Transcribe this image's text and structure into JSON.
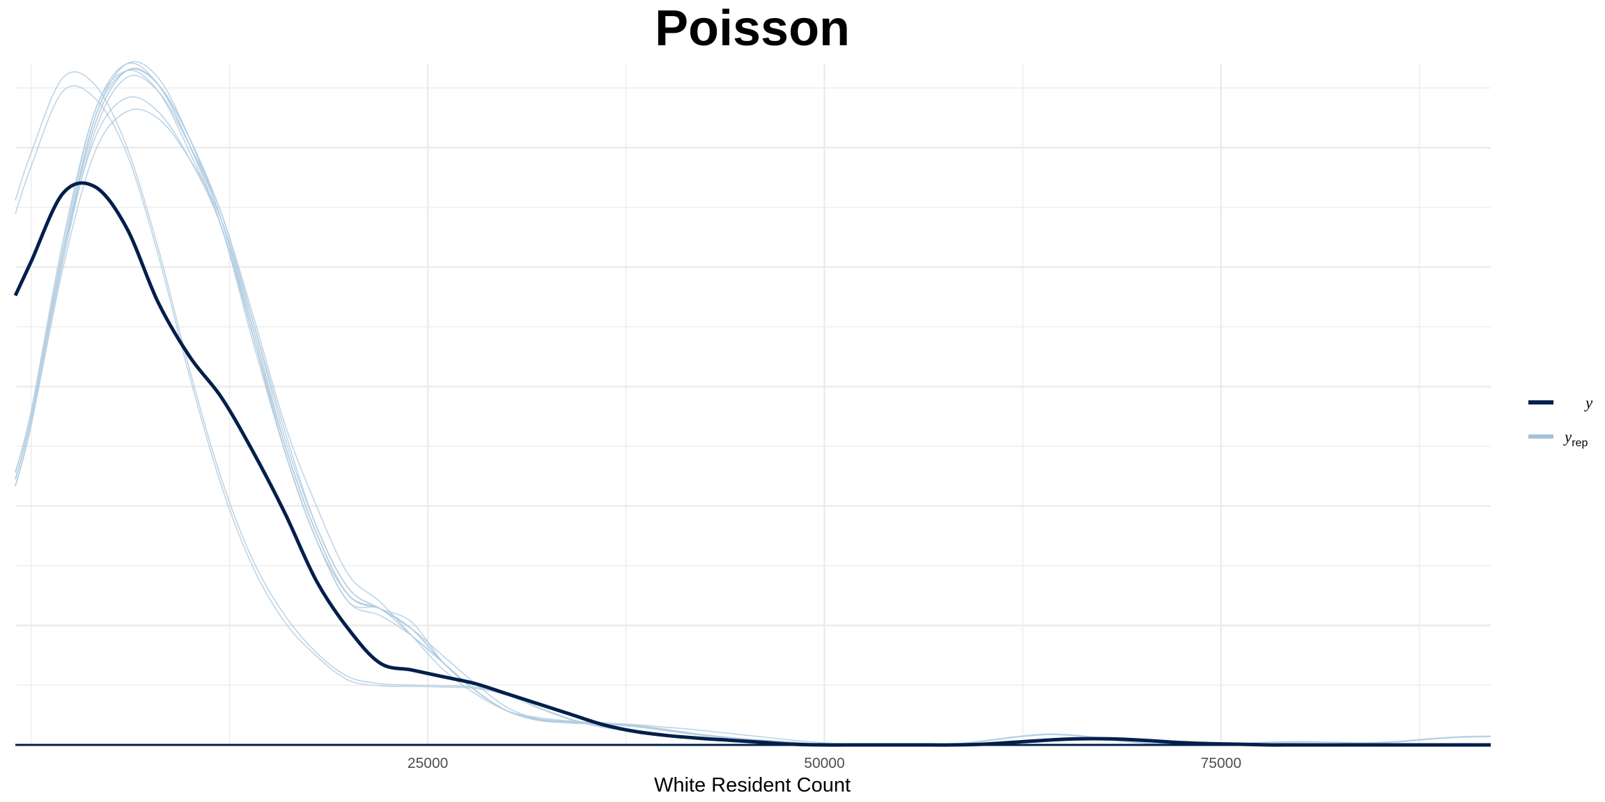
{
  "chart_data": {
    "type": "line",
    "title": "Poisson",
    "xlabel": "White Resident Count",
    "ylabel": "",
    "xlim": [
      -1000,
      92000
    ],
    "ylim": [
      0,
      1
    ],
    "x_ticks": [
      25000,
      50000,
      75000
    ],
    "x_tick_labels": [
      "25000",
      "50000",
      "75000"
    ],
    "grid": true,
    "legend_position": "right",
    "colors": {
      "y": "#011f4b",
      "yrep": "#b3cde0",
      "yrep_bold": "#a3c1da",
      "grid": "#ebebeb"
    },
    "legend": [
      {
        "key": "y",
        "label": "y",
        "sub": ""
      },
      {
        "key": "yrep",
        "label": "y",
        "sub": "rep"
      }
    ],
    "series": [
      {
        "name": "y",
        "role": "observed",
        "x": [
          -1000,
          0,
          2000,
          4000,
          6000,
          8000,
          10000,
          12000,
          14000,
          16000,
          18000,
          20000,
          22000,
          24000,
          26000,
          28000,
          30000,
          32000,
          34000,
          36000,
          38000,
          40000,
          42000,
          44000,
          46000,
          48000,
          50000,
          52000,
          54000,
          56000,
          58000,
          60000,
          62000,
          64000,
          66000,
          68000,
          70000,
          72000,
          74000,
          76000,
          78000,
          80000,
          85000,
          92000
        ],
        "y": [
          0.66,
          0.71,
          0.81,
          0.82,
          0.76,
          0.65,
          0.57,
          0.51,
          0.43,
          0.34,
          0.24,
          0.17,
          0.12,
          0.11,
          0.1,
          0.09,
          0.075,
          0.06,
          0.045,
          0.03,
          0.02,
          0.014,
          0.01,
          0.007,
          0.004,
          0.001,
          0,
          0,
          0,
          0,
          0,
          0.001,
          0.004,
          0.007,
          0.009,
          0.009,
          0.007,
          0.004,
          0.002,
          0.001,
          0,
          0,
          0,
          0
        ]
      },
      {
        "name": "y_rep 1",
        "role": "replicate",
        "x": [
          -1000,
          0,
          2000,
          4000,
          6000,
          8000,
          10000,
          12000,
          14000,
          16000,
          18000,
          20000,
          22000,
          24000,
          26000,
          28000,
          30000,
          32000,
          34000,
          36000,
          38000,
          40000,
          42000,
          44000,
          46000,
          48000,
          50000,
          52000,
          54000,
          56000,
          60000,
          70000,
          80000,
          92000
        ],
        "y": [
          0.39,
          0.48,
          0.72,
          0.91,
          0.99,
          0.97,
          0.88,
          0.77,
          0.6,
          0.43,
          0.3,
          0.22,
          0.2,
          0.17,
          0.12,
          0.08,
          0.05,
          0.037,
          0.033,
          0.032,
          0.028,
          0.022,
          0.015,
          0.01,
          0.006,
          0.003,
          0.001,
          0,
          0,
          0,
          0,
          0,
          0,
          0
        ]
      },
      {
        "name": "y_rep 2",
        "role": "replicate",
        "x": [
          -1000,
          0,
          2000,
          4000,
          6000,
          8000,
          10000,
          12000,
          14000,
          16000,
          18000,
          20000,
          22000,
          24000,
          26000,
          28000,
          30000,
          32000,
          34000,
          36000,
          38000,
          40000,
          42000,
          44000,
          46000,
          48000,
          50000,
          52000,
          54000,
          56000,
          60000,
          70000,
          80000,
          92000
        ],
        "y": [
          0.39,
          0.48,
          0.72,
          0.92,
          1.0,
          0.98,
          0.89,
          0.77,
          0.61,
          0.44,
          0.31,
          0.22,
          0.2,
          0.17,
          0.12,
          0.08,
          0.05,
          0.038,
          0.034,
          0.031,
          0.027,
          0.022,
          0.016,
          0.011,
          0.007,
          0.004,
          0.001,
          0,
          0,
          0,
          0,
          0,
          0,
          0
        ]
      },
      {
        "name": "y_rep 3",
        "role": "replicate",
        "x": [
          -1000,
          0,
          2000,
          4000,
          6000,
          8000,
          10000,
          12000,
          14000,
          16000,
          18000,
          20000,
          22000,
          24000,
          26000,
          28000,
          30000,
          32000,
          34000,
          36000,
          38000,
          40000,
          42000,
          44000,
          46000,
          48000,
          50000,
          52000,
          54000,
          56000,
          60000,
          70000,
          80000,
          92000
        ],
        "y": [
          0.4,
          0.49,
          0.73,
          0.93,
          0.99,
          0.96,
          0.87,
          0.76,
          0.59,
          0.43,
          0.3,
          0.21,
          0.2,
          0.16,
          0.12,
          0.08,
          0.05,
          0.036,
          0.033,
          0.032,
          0.029,
          0.023,
          0.016,
          0.01,
          0.006,
          0.003,
          0.001,
          0,
          0,
          0,
          0,
          0,
          0,
          0
        ]
      },
      {
        "name": "y_rep 4",
        "role": "replicate",
        "x": [
          -1000,
          0,
          2000,
          4000,
          6000,
          8000,
          10000,
          12000,
          14000,
          16000,
          18000,
          20000,
          22000,
          24000,
          26000,
          28000,
          30000,
          32000,
          34000,
          36000,
          38000,
          40000,
          42000,
          44000,
          46000,
          48000,
          50000,
          52000,
          54000,
          56000,
          60000,
          70000,
          80000,
          92000
        ],
        "y": [
          0.38,
          0.47,
          0.71,
          0.9,
          0.98,
          0.96,
          0.88,
          0.78,
          0.62,
          0.45,
          0.32,
          0.23,
          0.2,
          0.17,
          0.13,
          0.09,
          0.055,
          0.038,
          0.032,
          0.031,
          0.028,
          0.021,
          0.015,
          0.01,
          0.006,
          0.003,
          0.001,
          0,
          0,
          0,
          0,
          0,
          0,
          0
        ]
      },
      {
        "name": "y_rep 5",
        "role": "replicate",
        "x": [
          -1000,
          0,
          2000,
          4000,
          6000,
          8000,
          10000,
          12000,
          14000,
          16000,
          18000,
          20000,
          22000,
          24000,
          26000,
          28000,
          30000,
          32000,
          34000,
          36000,
          38000,
          40000,
          42000,
          44000,
          46000,
          48000,
          50000,
          52000,
          54000,
          56000,
          60000,
          70000,
          80000,
          92000
        ],
        "y": [
          0.39,
          0.48,
          0.72,
          0.91,
          0.99,
          0.97,
          0.89,
          0.77,
          0.61,
          0.44,
          0.31,
          0.22,
          0.2,
          0.18,
          0.12,
          0.08,
          0.05,
          0.037,
          0.034,
          0.033,
          0.027,
          0.021,
          0.015,
          0.01,
          0.007,
          0.004,
          0.001,
          0,
          0,
          0,
          0,
          0,
          0,
          0
        ]
      },
      {
        "name": "y_rep 6",
        "role": "replicate",
        "x": [
          -1000,
          0,
          2000,
          4000,
          6000,
          8000,
          10000,
          12000,
          14000,
          16000,
          18000,
          20000,
          22000,
          24000,
          26000,
          28000,
          30000,
          32000,
          34000,
          36000,
          38000,
          40000,
          42000,
          44000,
          46000,
          48000,
          50000,
          52000,
          54000,
          56000,
          60000,
          70000,
          80000,
          92000
        ],
        "y": [
          0.4,
          0.49,
          0.74,
          0.93,
          1.0,
          0.97,
          0.88,
          0.76,
          0.6,
          0.43,
          0.3,
          0.21,
          0.19,
          0.16,
          0.12,
          0.08,
          0.05,
          0.036,
          0.033,
          0.032,
          0.028,
          0.022,
          0.016,
          0.011,
          0.007,
          0.004,
          0.001,
          0,
          0,
          0,
          0,
          0,
          0,
          0
        ]
      },
      {
        "name": "y_rep 7",
        "role": "replicate",
        "x": [
          -1000,
          0,
          2000,
          4000,
          6000,
          8000,
          10000,
          12000,
          14000,
          16000,
          18000,
          20000,
          22000,
          24000,
          26000,
          28000,
          30000,
          32000,
          34000,
          36000,
          38000,
          40000,
          42000,
          44000,
          46000,
          48000,
          50000,
          52000,
          54000,
          56000,
          60000,
          70000,
          80000,
          92000
        ],
        "y": [
          0.39,
          0.48,
          0.72,
          0.89,
          0.95,
          0.93,
          0.86,
          0.76,
          0.6,
          0.44,
          0.31,
          0.22,
          0.2,
          0.17,
          0.12,
          0.08,
          0.05,
          0.037,
          0.034,
          0.032,
          0.028,
          0.022,
          0.016,
          0.01,
          0.006,
          0.003,
          0.001,
          0,
          0,
          0,
          0,
          0,
          0,
          0
        ]
      },
      {
        "name": "y_rep 8",
        "role": "replicate",
        "x": [
          -1000,
          0,
          2000,
          4000,
          6000,
          8000,
          10000,
          12000,
          14000,
          16000,
          18000,
          20000,
          22000,
          24000,
          26000,
          28000,
          30000,
          32000,
          34000,
          36000,
          38000,
          40000,
          42000,
          44000,
          46000,
          48000,
          50000,
          52000,
          54000,
          56000,
          60000,
          70000,
          80000,
          92000
        ],
        "y": [
          0.38,
          0.47,
          0.7,
          0.87,
          0.93,
          0.92,
          0.86,
          0.77,
          0.62,
          0.46,
          0.32,
          0.23,
          0.2,
          0.17,
          0.12,
          0.08,
          0.05,
          0.036,
          0.033,
          0.031,
          0.028,
          0.022,
          0.016,
          0.01,
          0.006,
          0.003,
          0.001,
          0,
          0,
          0,
          0,
          0,
          0,
          0
        ]
      },
      {
        "name": "y_rep 9",
        "role": "replicate",
        "x": [
          -1000,
          0,
          2000,
          4000,
          6000,
          8000,
          10000,
          12000,
          14000,
          16000,
          18000,
          20000,
          22000,
          24000,
          26000,
          28000,
          30000,
          32000,
          34000,
          36000,
          38000,
          40000,
          42000,
          44000,
          46000,
          48000,
          50000,
          52000,
          54000,
          56000,
          60000,
          70000,
          80000,
          92000
        ],
        "y": [
          0.39,
          0.48,
          0.72,
          0.92,
          0.99,
          0.97,
          0.89,
          0.78,
          0.63,
          0.47,
          0.35,
          0.25,
          0.21,
          0.16,
          0.11,
          0.075,
          0.05,
          0.04,
          0.035,
          0.032,
          0.03,
          0.026,
          0.022,
          0.017,
          0.012,
          0.007,
          0.003,
          0.001,
          0,
          0,
          0,
          0,
          0,
          0
        ]
      },
      {
        "name": "y_rep 10",
        "role": "replicate",
        "x": [
          -1000,
          0,
          2000,
          4000,
          6000,
          8000,
          10000,
          12000,
          14000,
          16000,
          18000,
          20000,
          22000,
          24000,
          26000,
          28000,
          30000,
          32000,
          34000,
          36000,
          38000,
          40000,
          42000,
          44000,
          46000,
          48000,
          50000,
          52000,
          54000,
          56000,
          58000,
          60000,
          62000,
          64000,
          66000,
          68000,
          70000,
          72000,
          74000,
          76000,
          78000,
          80000,
          82000,
          84000,
          86000,
          88000,
          90000,
          92000
        ],
        "y": [
          0.8,
          0.87,
          0.98,
          0.97,
          0.88,
          0.73,
          0.55,
          0.39,
          0.27,
          0.19,
          0.135,
          0.1,
          0.09,
          0.088,
          0.087,
          0.085,
          0.075,
          0.055,
          0.038,
          0.027,
          0.02,
          0.014,
          0.01,
          0.007,
          0.004,
          0.002,
          0.001,
          0,
          0,
          0,
          0.001,
          0.006,
          0.012,
          0.016,
          0.014,
          0.008,
          0.003,
          0.001,
          0.001,
          0.002,
          0.004,
          0.005,
          0.004,
          0.003,
          0.005,
          0.009,
          0.012,
          0.013
        ]
      },
      {
        "name": "y_rep 11",
        "role": "replicate",
        "x": [
          -1000,
          0,
          2000,
          4000,
          6000,
          8000,
          10000,
          12000,
          14000,
          16000,
          18000,
          20000,
          22000,
          24000,
          26000,
          28000,
          30000,
          32000,
          34000,
          36000,
          38000,
          40000,
          42000,
          44000,
          46000,
          48000,
          50000,
          52000,
          54000,
          56000,
          58000,
          60000,
          62000,
          64000,
          66000,
          68000,
          70000,
          72000,
          74000,
          76000,
          78000,
          80000,
          82000,
          84000,
          86000,
          88000,
          90000,
          92000
        ],
        "y": [
          0.78,
          0.85,
          0.96,
          0.95,
          0.87,
          0.72,
          0.54,
          0.38,
          0.26,
          0.18,
          0.13,
          0.095,
          0.087,
          0.086,
          0.085,
          0.083,
          0.073,
          0.054,
          0.037,
          0.026,
          0.019,
          0.013,
          0.009,
          0.006,
          0.004,
          0.002,
          0.001,
          0,
          0,
          0,
          0.001,
          0.005,
          0.011,
          0.015,
          0.013,
          0.007,
          0.003,
          0.001,
          0.001,
          0.002,
          0.003,
          0.004,
          0.004,
          0.003,
          0.004,
          0.008,
          0.011,
          0.012
        ]
      }
    ]
  }
}
